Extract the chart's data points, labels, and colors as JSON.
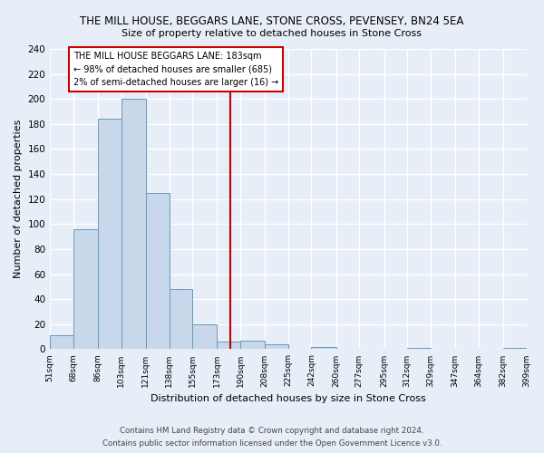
{
  "title": "THE MILL HOUSE, BEGGARS LANE, STONE CROSS, PEVENSEY, BN24 5EA",
  "subtitle": "Size of property relative to detached houses in Stone Cross",
  "xlabel": "Distribution of detached houses by size in Stone Cross",
  "ylabel": "Number of detached properties",
  "bin_labels": [
    "51sqm",
    "68sqm",
    "86sqm",
    "103sqm",
    "121sqm",
    "138sqm",
    "155sqm",
    "173sqm",
    "190sqm",
    "208sqm",
    "225sqm",
    "242sqm",
    "260sqm",
    "277sqm",
    "295sqm",
    "312sqm",
    "329sqm",
    "347sqm",
    "364sqm",
    "382sqm",
    "399sqm"
  ],
  "bar_values": [
    11,
    96,
    184,
    200,
    125,
    48,
    20,
    6,
    7,
    4,
    0,
    2,
    0,
    0,
    0,
    1,
    0,
    0,
    0,
    1
  ],
  "bar_color": "#c8d8ea",
  "bar_edge_color": "#6699bb",
  "ylim": [
    0,
    240
  ],
  "yticks": [
    0,
    20,
    40,
    60,
    80,
    100,
    120,
    140,
    160,
    180,
    200,
    220,
    240
  ],
  "property_size": 183,
  "vline_color": "#bb0000",
  "annotation_title": "THE MILL HOUSE BEGGARS LANE: 183sqm",
  "annotation_line1": "← 98% of detached houses are smaller (685)",
  "annotation_line2": "2% of semi-detached houses are larger (16) →",
  "annotation_box_color": "#cc0000",
  "footer1": "Contains HM Land Registry data © Crown copyright and database right 2024.",
  "footer2": "Contains public sector information licensed under the Open Government Licence v3.0.",
  "bg_color": "#e8eef8",
  "plot_bg_color": "#e8eef8",
  "grid_color": "#ffffff"
}
